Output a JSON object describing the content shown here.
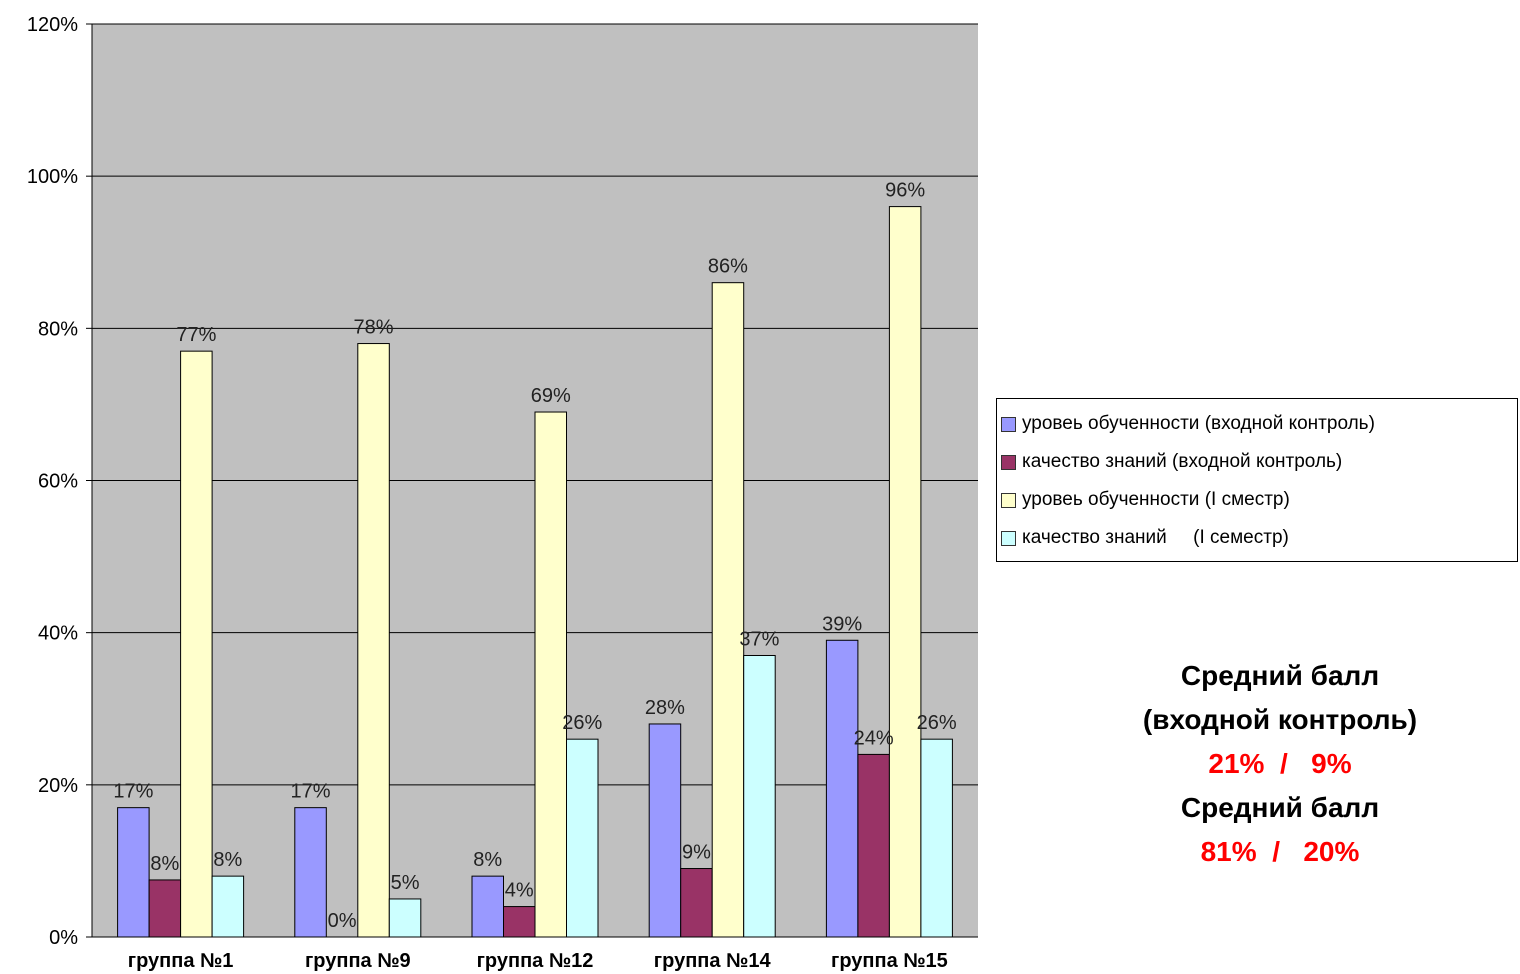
{
  "chart_data": {
    "type": "bar",
    "categories": [
      "группа №1",
      "группа №9",
      "группа №12",
      "группа №14",
      "группа №15"
    ],
    "series": [
      {
        "name": "уровеь обученности (входной контроль)",
        "color": "#9999ff",
        "values": [
          17,
          17,
          8,
          28,
          39
        ],
        "labels": [
          "17%",
          "17%",
          "8%",
          "28%",
          "39%"
        ]
      },
      {
        "name": "качество знаний (входной контроль)",
        "color": "#993366",
        "values": [
          7.5,
          0,
          4,
          9,
          24
        ],
        "labels": [
          "8%",
          "0%",
          "4%",
          "9%",
          "24%"
        ]
      },
      {
        "name": "уровеь обученности (I сместр)",
        "color": "#ffffcc",
        "values": [
          77,
          78,
          69,
          86,
          96
        ],
        "labels": [
          "77%",
          "78%",
          "69%",
          "86%",
          "96%"
        ]
      },
      {
        "name": "качество знаний     (I семестр)",
        "color": "#ccffff",
        "values": [
          8,
          5,
          26,
          37,
          26
        ],
        "labels": [
          "8%",
          "5%",
          "26%",
          "37%",
          "26%"
        ]
      }
    ],
    "ylim": [
      0,
      120
    ],
    "yticks": [
      0,
      20,
      40,
      60,
      80,
      100,
      120
    ],
    "ytick_labels": [
      "0%",
      "20%",
      "40%",
      "60%",
      "80%",
      "100%",
      "120%"
    ],
    "plot_background": "#c0c0c0",
    "grid": true,
    "legend": "right"
  },
  "summary": {
    "label1": "Средний балл",
    "label1_sub": "(входной контроль)",
    "value1": "21%  /   9%",
    "label2": "Средний балл",
    "value2": "81%  /   20%"
  }
}
